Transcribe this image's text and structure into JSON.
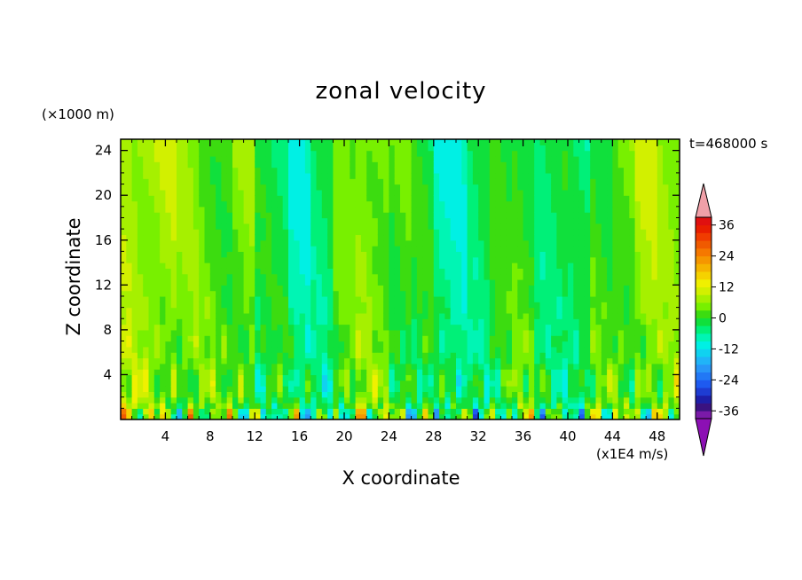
{
  "title": "zonal velocity",
  "y_unit_label": "(×1000 m)",
  "x_unit_label": "(x1E4 m/s)",
  "time_label": "t=468000 s",
  "chart_data": {
    "type": "heatmap",
    "title": "zonal velocity",
    "xlabel": "X coordinate",
    "ylabel": "Z coordinate",
    "xlim": [
      0,
      50
    ],
    "ylim": [
      0,
      25
    ],
    "x_ticks": [
      "4",
      "8",
      "12",
      "16",
      "20",
      "24",
      "28",
      "32",
      "36",
      "40",
      "44",
      "48"
    ],
    "x_tick_values": [
      4,
      8,
      12,
      16,
      20,
      24,
      28,
      32,
      36,
      40,
      44,
      48
    ],
    "y_ticks": [
      "4",
      "8",
      "12",
      "16",
      "20",
      "24"
    ],
    "y_tick_values": [
      4,
      8,
      12,
      16,
      20,
      24
    ],
    "colorbar": {
      "levels": [
        -42,
        -39,
        -36,
        -33,
        -30,
        -27,
        -24,
        -21,
        -18,
        -15,
        -12,
        -9,
        -6,
        -3,
        0,
        3,
        6,
        9,
        12,
        15,
        18,
        21,
        24,
        27,
        30,
        33,
        36,
        39,
        42
      ],
      "tick_labels": [
        "36",
        "24",
        "12",
        "0",
        "-12",
        "-24",
        "-36"
      ],
      "tick_values": [
        36,
        24,
        12,
        0,
        -12,
        -24,
        -36
      ],
      "colors": [
        "#7a1aa8",
        "#3a1280",
        "#1e1ea8",
        "#1e3cd2",
        "#1e5af0",
        "#2278f5",
        "#2896f8",
        "#20b4f8",
        "#10d2f0",
        "#00f0e4",
        "#00f5b4",
        "#00f078",
        "#10e03c",
        "#3cdc10",
        "#78f000",
        "#a6f000",
        "#d2f000",
        "#f0f000",
        "#f5d200",
        "#f5b400",
        "#f59600",
        "#f57800",
        "#f05a00",
        "#f03c00",
        "#e81e00",
        "#e01010"
      ],
      "extend_low_color": "#8c10b4",
      "extend_high_color": "#f0a0a8"
    },
    "field_summary": "Contour field of zonal velocity; values mostly between -12 and +12, positive plumes near the surface, strongest values below z=4."
  }
}
